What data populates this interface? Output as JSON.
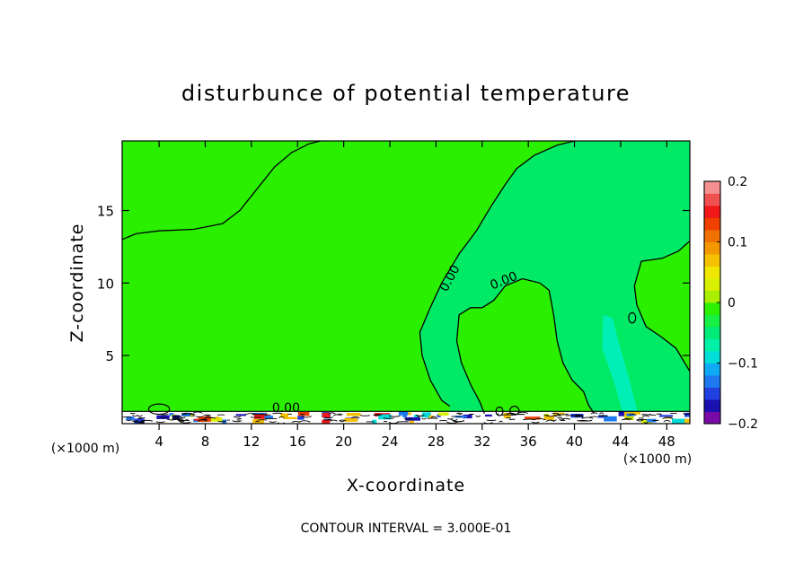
{
  "chart_data": {
    "type": "heatmap",
    "title": "disturbunce of potential temperature",
    "xlabel": "X-coordinate",
    "ylabel": "Z-coordinate",
    "x_unit_left": "(×1000 m)",
    "x_unit_right": "(×1000 m)",
    "footer": "CONTOUR INTERVAL = 3.000E-01",
    "xlim": [
      0.8,
      50
    ],
    "ylim": [
      0.3,
      19.8
    ],
    "x_ticks": [
      4,
      8,
      12,
      16,
      20,
      24,
      28,
      32,
      36,
      40,
      44,
      48
    ],
    "x_tick_labels": [
      "4",
      "8",
      "12",
      "16",
      "20",
      "24",
      "28",
      "32",
      "36",
      "40",
      "44",
      "48"
    ],
    "y_ticks": [
      5,
      10,
      15
    ],
    "y_tick_labels": [
      "5",
      "10",
      "15"
    ],
    "contour_labels": [
      {
        "text": "0.00",
        "x": 29.5,
        "y": 10.2,
        "angle": -62
      },
      {
        "text": "0.00",
        "x": 34.0,
        "y": 9.9,
        "angle": -22
      },
      {
        "text": "0.00",
        "x": 15.0,
        "y": 1.1,
        "angle": 0
      }
    ],
    "zero_contours": [
      [
        [
          0.8,
          13.0
        ],
        [
          2.0,
          13.4
        ],
        [
          4.0,
          13.6
        ],
        [
          7.0,
          13.7
        ],
        [
          9.5,
          14.1
        ],
        [
          11.0,
          15.0
        ],
        [
          12.5,
          16.5
        ],
        [
          14.0,
          18.0
        ],
        [
          15.5,
          19.0
        ],
        [
          17.0,
          19.6
        ],
        [
          18.0,
          19.8
        ]
      ],
      [
        [
          40.0,
          19.8
        ],
        [
          38.5,
          19.5
        ],
        [
          36.5,
          18.8
        ],
        [
          35.0,
          17.9
        ],
        [
          34.0,
          16.8
        ],
        [
          32.7,
          15.2
        ],
        [
          31.5,
          13.6
        ],
        [
          30.0,
          12.0
        ],
        [
          28.5,
          10.0
        ],
        [
          27.5,
          8.3
        ],
        [
          26.6,
          6.6
        ],
        [
          26.8,
          5.0
        ],
        [
          27.5,
          3.3
        ],
        [
          28.5,
          1.9
        ],
        [
          29.2,
          1.5
        ]
      ],
      [
        [
          32.2,
          1.0
        ],
        [
          31.8,
          1.8
        ],
        [
          31.0,
          3.0
        ],
        [
          30.2,
          4.5
        ],
        [
          29.8,
          6.0
        ],
        [
          30.0,
          7.8
        ],
        [
          31.0,
          8.3
        ],
        [
          32.0,
          8.3
        ],
        [
          33.0,
          8.8
        ],
        [
          34.0,
          9.8
        ],
        [
          35.5,
          10.3
        ],
        [
          37.0,
          10.0
        ],
        [
          37.8,
          9.5
        ],
        [
          38.2,
          7.8
        ],
        [
          38.5,
          6.0
        ],
        [
          39.0,
          4.5
        ],
        [
          39.8,
          3.3
        ],
        [
          40.8,
          2.5
        ],
        [
          41.2,
          1.6
        ],
        [
          41.7,
          1.0
        ]
      ],
      [
        [
          50.0,
          12.9
        ],
        [
          49.0,
          12.2
        ],
        [
          47.6,
          11.7
        ],
        [
          45.8,
          11.5
        ],
        [
          45.2,
          9.8
        ],
        [
          45.4,
          8.5
        ],
        [
          46.2,
          7.0
        ],
        [
          47.5,
          6.3
        ],
        [
          48.8,
          5.5
        ],
        [
          50.0,
          3.9
        ]
      ]
    ],
    "small_zero_contours": [
      {
        "cx": 4.0,
        "cy": 1.3,
        "rx": 0.9,
        "ry": 0.35
      },
      {
        "cx": 45.0,
        "cy": 7.6,
        "rx": 0.3,
        "ry": 0.35
      },
      {
        "cx": 33.5,
        "cy": 1.15,
        "rx": 0.3,
        "ry": 0.3
      },
      {
        "cx": 34.8,
        "cy": 1.2,
        "rx": 0.4,
        "ry": 0.3
      }
    ],
    "plume_negative": [
      [
        42.5,
        7.8
      ],
      [
        43.3,
        7.6
      ],
      [
        43.8,
        6.0
      ],
      [
        44.8,
        3.2
      ],
      [
        45.5,
        1.0
      ],
      [
        44.2,
        1.0
      ],
      [
        43.5,
        3.0
      ],
      [
        42.4,
        5.5
      ]
    ],
    "field_regions": [
      {
        "value": 0.0,
        "desc": "upper-left region"
      },
      {
        "value": -0.02,
        "desc": "central region"
      },
      {
        "value": 0.0,
        "desc": "upper-right region"
      }
    ],
    "colorbar": {
      "min": -0.2,
      "max": 0.2,
      "tick_values": [
        0.2,
        0.1,
        0,
        -0.1,
        -0.2
      ],
      "tick_labels": [
        "0.2",
        "0.1",
        "0",
        "−0.1",
        "−0.2"
      ],
      "colors": [
        "#7a0aa8",
        "#1a10b0",
        "#2040e0",
        "#1e78f0",
        "#10aaf4",
        "#00dcd8",
        "#00f0a8",
        "#00ea78",
        "#18f046",
        "#2cf000",
        "#a8f000",
        "#d8f000",
        "#f0e800",
        "#f4c000",
        "#f49800",
        "#f07000",
        "#f04000",
        "#f01818",
        "#f05050",
        "#f49090"
      ]
    },
    "field_colors": {
      "zero": "#2af000",
      "slightly_negative": "#00ea66",
      "plume": "#00f0c4"
    }
  }
}
